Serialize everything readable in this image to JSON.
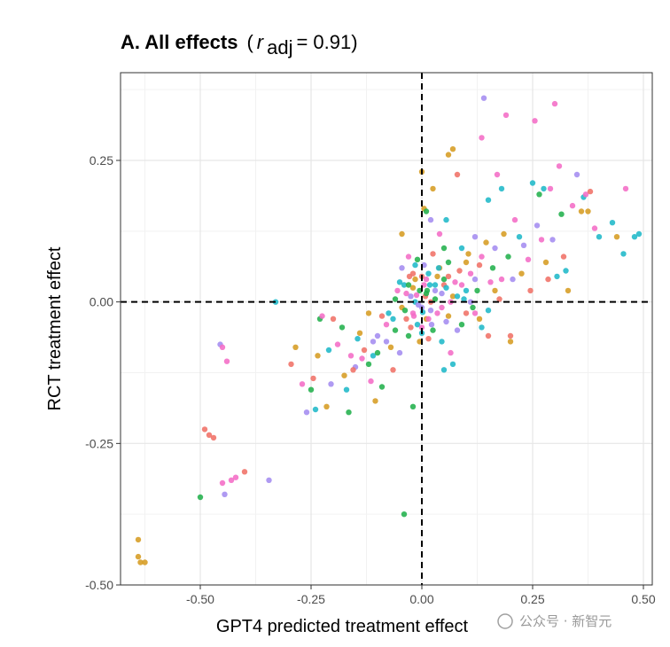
{
  "chart_data": {
    "type": "scatter",
    "title_bold": "A. All effects",
    "title_stat_open": "(",
    "title_stat_symbol": "r",
    "title_stat_subscript": "adj",
    "title_stat_value": " = 0.91)",
    "xlabel": "GPT4 predicted treatment effect",
    "ylabel": "RCT treatment effect",
    "xlim": [
      -0.68,
      0.52
    ],
    "ylim": [
      -0.5,
      0.405
    ],
    "x_ticks": [
      -0.5,
      -0.25,
      0.0,
      0.25,
      0.5
    ],
    "x_tick_labels": [
      "-0.50",
      "-0.25",
      "0.00",
      "0.25",
      "0.50"
    ],
    "y_ticks": [
      -0.5,
      -0.25,
      0.0,
      0.25
    ],
    "y_tick_labels": [
      "-0.50",
      "-0.25",
      "0.00",
      "0.25"
    ],
    "grid": true,
    "reference_lines": {
      "x": 0,
      "y": 0,
      "style": "dashed"
    },
    "legend": "none",
    "colors": [
      "#D69C22",
      "#22B14C",
      "#1FB8C8",
      "#F46CC6",
      "#F07167",
      "#A48CF0"
    ],
    "points": [
      [
        -0.64,
        -0.42,
        0
      ],
      [
        -0.64,
        -0.45,
        0
      ],
      [
        -0.635,
        -0.46,
        0
      ],
      [
        -0.625,
        -0.46,
        0
      ],
      [
        -0.5,
        -0.345,
        1
      ],
      [
        -0.49,
        -0.225,
        4
      ],
      [
        -0.48,
        -0.235,
        4
      ],
      [
        -0.47,
        -0.24,
        4
      ],
      [
        -0.45,
        -0.32,
        3
      ],
      [
        -0.445,
        -0.34,
        5
      ],
      [
        -0.43,
        -0.315,
        3
      ],
      [
        -0.42,
        -0.31,
        3
      ],
      [
        -0.4,
        -0.3,
        4
      ],
      [
        -0.345,
        -0.315,
        5
      ],
      [
        -0.455,
        -0.075,
        5
      ],
      [
        -0.45,
        -0.08,
        3
      ],
      [
        -0.44,
        -0.105,
        3
      ],
      [
        -0.33,
        0.0,
        2
      ],
      [
        -0.295,
        -0.11,
        4
      ],
      [
        -0.285,
        -0.08,
        0
      ],
      [
        -0.27,
        -0.145,
        3
      ],
      [
        -0.26,
        -0.195,
        5
      ],
      [
        -0.25,
        -0.155,
        1
      ],
      [
        -0.245,
        -0.135,
        4
      ],
      [
        -0.24,
        -0.19,
        2
      ],
      [
        -0.235,
        -0.095,
        0
      ],
      [
        -0.23,
        -0.03,
        1
      ],
      [
        -0.225,
        -0.025,
        3
      ],
      [
        -0.215,
        -0.185,
        0
      ],
      [
        -0.21,
        -0.085,
        2
      ],
      [
        -0.205,
        -0.145,
        5
      ],
      [
        -0.2,
        -0.03,
        4
      ],
      [
        -0.19,
        -0.075,
        3
      ],
      [
        -0.18,
        -0.045,
        1
      ],
      [
        -0.175,
        -0.13,
        0
      ],
      [
        -0.17,
        -0.155,
        2
      ],
      [
        -0.165,
        -0.195,
        1
      ],
      [
        -0.16,
        -0.095,
        3
      ],
      [
        -0.15,
        -0.115,
        5
      ],
      [
        -0.14,
        -0.055,
        0
      ],
      [
        -0.13,
        -0.085,
        4
      ],
      [
        -0.12,
        -0.11,
        1
      ],
      [
        -0.115,
        -0.14,
        3
      ],
      [
        -0.11,
        -0.095,
        2
      ],
      [
        -0.105,
        -0.175,
        0
      ],
      [
        -0.1,
        -0.06,
        5
      ],
      [
        -0.09,
        -0.15,
        1
      ],
      [
        -0.08,
        -0.04,
        3
      ],
      [
        -0.075,
        -0.02,
        2
      ],
      [
        -0.07,
        -0.08,
        0
      ],
      [
        -0.065,
        -0.12,
        4
      ],
      [
        -0.06,
        -0.05,
        1
      ],
      [
        -0.055,
        0.02,
        3
      ],
      [
        -0.05,
        -0.09,
        5
      ],
      [
        -0.045,
        -0.01,
        0
      ],
      [
        -0.04,
        0.03,
        2
      ],
      [
        -0.035,
        -0.03,
        4
      ],
      [
        -0.03,
        -0.06,
        1
      ],
      [
        -0.025,
        0.01,
        5
      ],
      [
        -0.02,
        -0.02,
        3
      ],
      [
        -0.015,
        0.04,
        0
      ],
      [
        -0.01,
        -0.04,
        2
      ],
      [
        -0.005,
        0.02,
        1
      ],
      [
        0.0,
        -0.01,
        5
      ],
      [
        0.005,
        0.03,
        3
      ],
      [
        0.01,
        -0.03,
        0
      ],
      [
        0.015,
        0.05,
        2
      ],
      [
        0.02,
        0.0,
        4
      ],
      [
        0.025,
        -0.05,
        1
      ],
      [
        0.03,
        0.02,
        5
      ],
      [
        0.035,
        -0.02,
        3
      ],
      [
        0.04,
        0.06,
        0
      ],
      [
        0.045,
        -0.07,
        2
      ],
      [
        0.05,
        0.03,
        4
      ],
      [
        0.055,
        -0.035,
        5
      ],
      [
        0.06,
        0.07,
        1
      ],
      [
        0.065,
        -0.09,
        3
      ],
      [
        0.07,
        0.01,
        0
      ],
      [
        -0.045,
        0.12,
        0
      ],
      [
        -0.03,
        0.08,
        3
      ],
      [
        -0.02,
        0.05,
        4
      ],
      [
        -0.01,
        0.075,
        1
      ],
      [
        0.0,
        -0.055,
        2
      ],
      [
        0.005,
        0.065,
        5
      ],
      [
        0.01,
        0.04,
        3
      ],
      [
        -0.005,
        -0.07,
        0
      ],
      [
        -0.025,
        -0.045,
        4
      ],
      [
        -0.015,
        0.0,
        2
      ],
      [
        0.02,
        -0.015,
        5
      ],
      [
        0.03,
        0.005,
        1
      ],
      [
        -0.035,
        0.015,
        3
      ],
      [
        -0.05,
        0.035,
        2
      ],
      [
        0.035,
        0.045,
        0
      ],
      [
        0.045,
        0.015,
        5
      ],
      [
        0.025,
        0.085,
        4
      ],
      [
        -0.06,
        0.005,
        1
      ],
      [
        0.015,
        -0.03,
        3
      ],
      [
        0.055,
        0.025,
        2
      ],
      [
        -0.02,
        0.025,
        0
      ],
      [
        0.008,
        0.01,
        4
      ],
      [
        -0.008,
        -0.005,
        5
      ],
      [
        0.012,
        0.02,
        1
      ],
      [
        -0.012,
        0.012,
        3
      ],
      [
        0.002,
        -0.018,
        2
      ],
      [
        0.0,
        0.23,
        0
      ],
      [
        0.005,
        0.165,
        0
      ],
      [
        0.01,
        0.16,
        1
      ],
      [
        0.02,
        0.145,
        5
      ],
      [
        0.025,
        0.2,
        0
      ],
      [
        0.04,
        0.12,
        3
      ],
      [
        0.05,
        0.095,
        1
      ],
      [
        0.055,
        0.145,
        2
      ],
      [
        0.06,
        0.26,
        0
      ],
      [
        0.07,
        0.27,
        0
      ],
      [
        0.08,
        0.225,
        4
      ],
      [
        0.09,
        0.095,
        2
      ],
      [
        0.1,
        0.07,
        0
      ],
      [
        0.11,
        0.05,
        3
      ],
      [
        0.12,
        0.115,
        5
      ],
      [
        0.125,
        0.02,
        1
      ],
      [
        0.13,
        0.065,
        4
      ],
      [
        0.135,
        0.29,
        3
      ],
      [
        0.14,
        0.36,
        5
      ],
      [
        0.145,
        0.105,
        0
      ],
      [
        0.15,
        0.18,
        2
      ],
      [
        0.155,
        0.035,
        3
      ],
      [
        0.16,
        0.06,
        1
      ],
      [
        0.165,
        0.095,
        5
      ],
      [
        0.17,
        0.225,
        3
      ],
      [
        0.175,
        0.005,
        4
      ],
      [
        0.18,
        0.2,
        2
      ],
      [
        0.185,
        0.12,
        0
      ],
      [
        0.19,
        0.33,
        3
      ],
      [
        0.195,
        0.08,
        1
      ],
      [
        0.2,
        -0.07,
        0
      ],
      [
        0.2,
        -0.06,
        4
      ],
      [
        0.205,
        0.04,
        5
      ],
      [
        0.21,
        0.145,
        3
      ],
      [
        0.22,
        0.115,
        2
      ],
      [
        0.225,
        0.05,
        0
      ],
      [
        0.23,
        0.1,
        5
      ],
      [
        0.24,
        0.075,
        3
      ],
      [
        0.245,
        0.02,
        4
      ],
      [
        0.25,
        0.21,
        2
      ],
      [
        0.255,
        0.32,
        3
      ],
      [
        0.26,
        0.135,
        5
      ],
      [
        0.265,
        0.19,
        1
      ],
      [
        0.27,
        0.11,
        3
      ],
      [
        0.275,
        0.2,
        2
      ],
      [
        0.28,
        0.07,
        0
      ],
      [
        0.285,
        0.04,
        4
      ],
      [
        0.29,
        0.2,
        3
      ],
      [
        0.295,
        0.11,
        5
      ],
      [
        0.3,
        0.35,
        3
      ],
      [
        0.305,
        0.045,
        2
      ],
      [
        0.31,
        0.24,
        3
      ],
      [
        0.315,
        0.155,
        1
      ],
      [
        0.32,
        0.08,
        4
      ],
      [
        0.325,
        0.055,
        2
      ],
      [
        0.33,
        0.02,
        0
      ],
      [
        0.34,
        0.17,
        3
      ],
      [
        0.35,
        0.225,
        5
      ],
      [
        0.36,
        0.16,
        0
      ],
      [
        0.365,
        0.185,
        2
      ],
      [
        0.37,
        0.19,
        3
      ],
      [
        0.375,
        0.16,
        0
      ],
      [
        0.38,
        0.195,
        4
      ],
      [
        0.39,
        0.13,
        3
      ],
      [
        0.4,
        0.115,
        2
      ],
      [
        0.43,
        0.14,
        2
      ],
      [
        0.44,
        0.115,
        0
      ],
      [
        0.455,
        0.085,
        2
      ],
      [
        0.46,
        0.2,
        3
      ],
      [
        0.48,
        0.115,
        2
      ],
      [
        0.49,
        0.12,
        2
      ],
      [
        0.1,
        0.02,
        2
      ],
      [
        0.11,
        0.0,
        5
      ],
      [
        0.12,
        -0.02,
        3
      ],
      [
        0.13,
        -0.03,
        0
      ],
      [
        0.135,
        -0.045,
        2
      ],
      [
        0.15,
        -0.06,
        4
      ],
      [
        0.09,
        -0.04,
        1
      ],
      [
        0.08,
        -0.05,
        5
      ],
      [
        0.07,
        -0.11,
        2
      ],
      [
        0.05,
        -0.12,
        2
      ],
      [
        0.05,
        0.04,
        1
      ],
      [
        0.06,
        -0.025,
        0
      ],
      [
        0.075,
        0.035,
        3
      ],
      [
        0.085,
        0.055,
        4
      ],
      [
        0.095,
        0.005,
        2
      ],
      [
        0.105,
        0.085,
        0
      ],
      [
        0.115,
        -0.01,
        1
      ],
      [
        0.12,
        0.04,
        5
      ],
      [
        0.135,
        0.08,
        3
      ],
      [
        0.15,
        -0.015,
        2
      ],
      [
        0.165,
        0.02,
        0
      ],
      [
        0.18,
        0.04,
        3
      ],
      [
        -0.02,
        -0.185,
        1
      ],
      [
        -0.04,
        -0.375,
        1
      ],
      [
        0.01,
        0.015,
        1
      ],
      [
        0.018,
        0.03,
        2
      ],
      [
        -0.018,
        -0.025,
        3
      ],
      [
        0.022,
        -0.04,
        5
      ],
      [
        -0.028,
        0.045,
        4
      ],
      [
        0.038,
        0.06,
        2
      ],
      [
        -0.038,
        -0.015,
        1
      ],
      [
        0.045,
        -0.01,
        3
      ],
      [
        -0.045,
        0.06,
        5
      ],
      [
        0.06,
        0.045,
        4
      ],
      [
        -0.065,
        -0.03,
        2
      ],
      [
        0.065,
        0.0,
        3
      ],
      [
        -0.08,
        -0.07,
        5
      ],
      [
        0.08,
        0.01,
        2
      ],
      [
        -0.09,
        -0.025,
        4
      ],
      [
        0.09,
        0.03,
        3
      ],
      [
        -0.1,
        -0.09,
        1
      ],
      [
        0.1,
        -0.02,
        4
      ],
      [
        -0.11,
        -0.07,
        5
      ],
      [
        -0.12,
        -0.02,
        0
      ],
      [
        -0.135,
        -0.1,
        3
      ],
      [
        -0.145,
        -0.065,
        2
      ],
      [
        -0.155,
        -0.12,
        4
      ],
      [
        0.03,
        0.03,
        2
      ],
      [
        -0.03,
        0.03,
        1
      ],
      [
        0.0,
        0.045,
        4
      ],
      [
        0.0,
        -0.045,
        3
      ],
      [
        0.015,
        -0.065,
        4
      ],
      [
        -0.015,
        0.065,
        2
      ]
    ]
  },
  "watermark": {
    "text": "公众号 · 新智元"
  }
}
